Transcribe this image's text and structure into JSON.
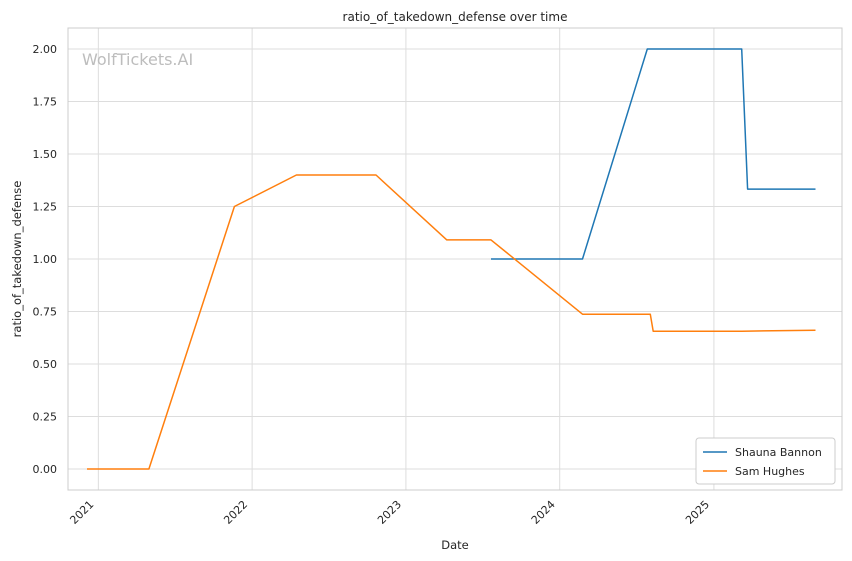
{
  "chart_data": {
    "type": "line",
    "title": "ratio_of_takedown_defense over time",
    "xlabel": "Date",
    "ylabel": "ratio_of_takedown_defense",
    "watermark": "WolfTickets.AI",
    "x_ticks": [
      "2021",
      "2022",
      "2023",
      "2024",
      "2025"
    ],
    "y_ticks": [
      "0.00",
      "0.25",
      "0.50",
      "0.75",
      "1.00",
      "1.25",
      "1.50",
      "1.75",
      "2.00"
    ],
    "xlim": [
      "2020-10-21",
      "2025-11-01"
    ],
    "ylim": [
      -0.1,
      2.1
    ],
    "grid": true,
    "legend_position": "lower-right",
    "series": [
      {
        "name": "Shauna Bannon",
        "color": "#1f77b4",
        "points": [
          [
            "2023-07-22",
            1.0
          ],
          [
            "2024-02-24",
            1.0
          ],
          [
            "2024-07-27",
            2.0
          ],
          [
            "2025-03-08",
            2.0
          ],
          [
            "2025-03-22",
            1.333
          ],
          [
            "2025-08-30",
            1.333
          ]
        ]
      },
      {
        "name": "Sam Hughes",
        "color": "#ff7f0e",
        "points": [
          [
            "2020-12-05",
            0.0
          ],
          [
            "2021-05-01",
            0.0
          ],
          [
            "2021-11-20",
            1.25
          ],
          [
            "2022-04-16",
            1.4
          ],
          [
            "2022-10-22",
            1.4
          ],
          [
            "2023-04-08",
            1.091
          ],
          [
            "2023-07-22",
            1.091
          ],
          [
            "2024-02-24",
            0.737
          ],
          [
            "2024-08-03",
            0.737
          ],
          [
            "2024-08-10",
            0.656
          ],
          [
            "2025-03-08",
            0.656
          ],
          [
            "2025-08-30",
            0.661
          ]
        ]
      }
    ]
  }
}
